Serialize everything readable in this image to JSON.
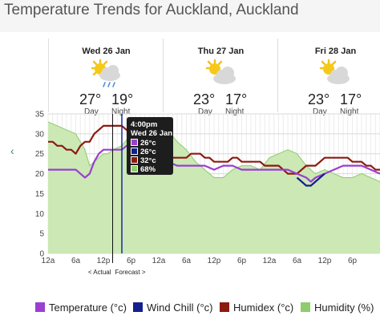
{
  "page": {
    "title": "Temperature Trends for Auckland, Auckland"
  },
  "days": [
    {
      "date": "Wed 26 Jan",
      "icon": "sun-cloud-rain-icon",
      "day_temp": "27°",
      "night_temp": "19°",
      "day_label": "Day",
      "night_label": "Night"
    },
    {
      "date": "Thu 27 Jan",
      "icon": "sun-cloud-icon",
      "day_temp": "23°",
      "night_temp": "17°",
      "day_label": "Day",
      "night_label": "Night"
    },
    {
      "date": "Fri 28 Jan",
      "icon": "sun-cloud-icon",
      "day_temp": "23°",
      "night_temp": "17°",
      "day_label": "Day",
      "night_label": "Night"
    }
  ],
  "nav": {
    "prev_arrow": "‹"
  },
  "annotations": {
    "actual_label": "< Actual",
    "forecast_label": "Forecast >"
  },
  "tooltip": {
    "time": "4:00pm",
    "date": "Wed 26 Jan",
    "values": [
      {
        "text": "26°c",
        "color": "#9a3fd0"
      },
      {
        "text": "26°c",
        "color": "#141f8f"
      },
      {
        "text": "32°c",
        "color": "#8b1a10"
      },
      {
        "text": "68%",
        "color": "#8fcc6b"
      }
    ]
  },
  "legend": [
    {
      "label": "Temperature (°c)",
      "color": "#9a3fd0"
    },
    {
      "label": "Wind Chill (°c)",
      "color": "#141f8f"
    },
    {
      "label": "Humidex (°c)",
      "color": "#8b1a10"
    },
    {
      "label": "Humidity (%)",
      "color": "#8fcc6b"
    }
  ],
  "chart_data": {
    "type": "line",
    "x_unit": "hours from 12a Wed 26 Jan",
    "x_ticks": [
      "12a",
      "6a",
      "12p",
      "6p",
      "12a",
      "6a",
      "12p",
      "6p",
      "12a",
      "6a",
      "12p",
      "6p"
    ],
    "y_ticks": [
      "0",
      "5",
      "10",
      "15",
      "20",
      "25",
      "30",
      "35"
    ],
    "ylim": [
      0,
      35
    ],
    "grid": true,
    "actual_forecast_split_hour": 14,
    "highlight_hour": 16,
    "series": [
      {
        "name": "Humidity (%)",
        "kind": "area",
        "color": "#8fcc6b",
        "fill": "#cbe8b5",
        "x": [
          0,
          2,
          4,
          6,
          8,
          9,
          10,
          12,
          13,
          14,
          16,
          18,
          20,
          22,
          24,
          26,
          28,
          30,
          32,
          34,
          36,
          38,
          40,
          42,
          44,
          46,
          48,
          50,
          52,
          54,
          56,
          58,
          60,
          62,
          64,
          66,
          68,
          70,
          72
        ],
        "y": [
          33,
          32,
          31,
          30,
          26,
          22,
          23,
          25,
          25,
          26,
          27,
          30,
          33,
          34,
          33,
          31,
          28,
          26,
          23,
          21,
          19,
          19,
          21,
          22,
          22,
          21,
          24,
          25,
          26,
          25,
          22,
          20,
          21,
          20,
          19,
          19,
          20,
          19,
          18
        ]
      },
      {
        "name": "Humidex (°c)",
        "kind": "line",
        "color": "#8b1a10",
        "x": [
          0,
          1,
          2,
          3,
          4,
          5,
          6,
          7,
          8,
          9,
          10,
          11,
          12,
          13,
          14,
          15,
          16,
          17,
          18,
          19,
          20,
          21,
          22,
          23,
          24,
          25,
          26,
          27,
          28,
          29,
          30,
          31,
          32,
          33,
          34,
          35,
          36,
          37,
          38,
          39,
          40,
          41,
          42,
          43,
          44,
          45,
          46,
          47,
          48,
          49,
          50,
          51,
          52,
          53,
          54,
          55,
          56,
          57,
          58,
          59,
          60,
          61,
          62,
          63,
          64,
          65,
          66,
          67,
          68,
          69,
          70,
          71,
          72
        ],
        "y": [
          28,
          28,
          27,
          27,
          26,
          26,
          25,
          27,
          28,
          28,
          30,
          31,
          32,
          32,
          32,
          32,
          32,
          31,
          30,
          29,
          28,
          28,
          28,
          27,
          26,
          25,
          24,
          24,
          24,
          24,
          24,
          25,
          25,
          25,
          24,
          24,
          23,
          23,
          23,
          23,
          24,
          24,
          23,
          23,
          23,
          23,
          23,
          22,
          22,
          22,
          22,
          21,
          20,
          20,
          20,
          21,
          22,
          22,
          22,
          23,
          24,
          24,
          24,
          24,
          24,
          24,
          23,
          23,
          23,
          22,
          22,
          21,
          21
        ]
      },
      {
        "name": "Temperature (°c)",
        "kind": "line",
        "color": "#9a3fd0",
        "x": [
          0,
          2,
          4,
          6,
          7,
          8,
          9,
          10,
          11,
          12,
          13,
          14,
          15,
          16,
          17,
          18,
          20,
          22,
          24,
          26,
          28,
          30,
          32,
          34,
          36,
          38,
          40,
          42,
          44,
          46,
          48,
          50,
          52,
          54,
          56,
          57,
          58,
          60,
          62,
          64,
          66,
          68,
          70,
          72
        ],
        "y": [
          21,
          21,
          21,
          21,
          20,
          19,
          20,
          23,
          25,
          26,
          26,
          26,
          26,
          26,
          27,
          27,
          26,
          25,
          24,
          23,
          22,
          22,
          22,
          22,
          21,
          22,
          22,
          21,
          21,
          21,
          21,
          21,
          21,
          20,
          19,
          18,
          19,
          20,
          21,
          22,
          22,
          22,
          21,
          20
        ]
      },
      {
        "name": "Wind Chill (°c)",
        "kind": "line",
        "color": "#141f8f",
        "x": [
          54,
          55,
          56,
          57,
          58,
          59,
          60
        ],
        "y": [
          19,
          18,
          17,
          17,
          18,
          19,
          20
        ]
      }
    ]
  }
}
